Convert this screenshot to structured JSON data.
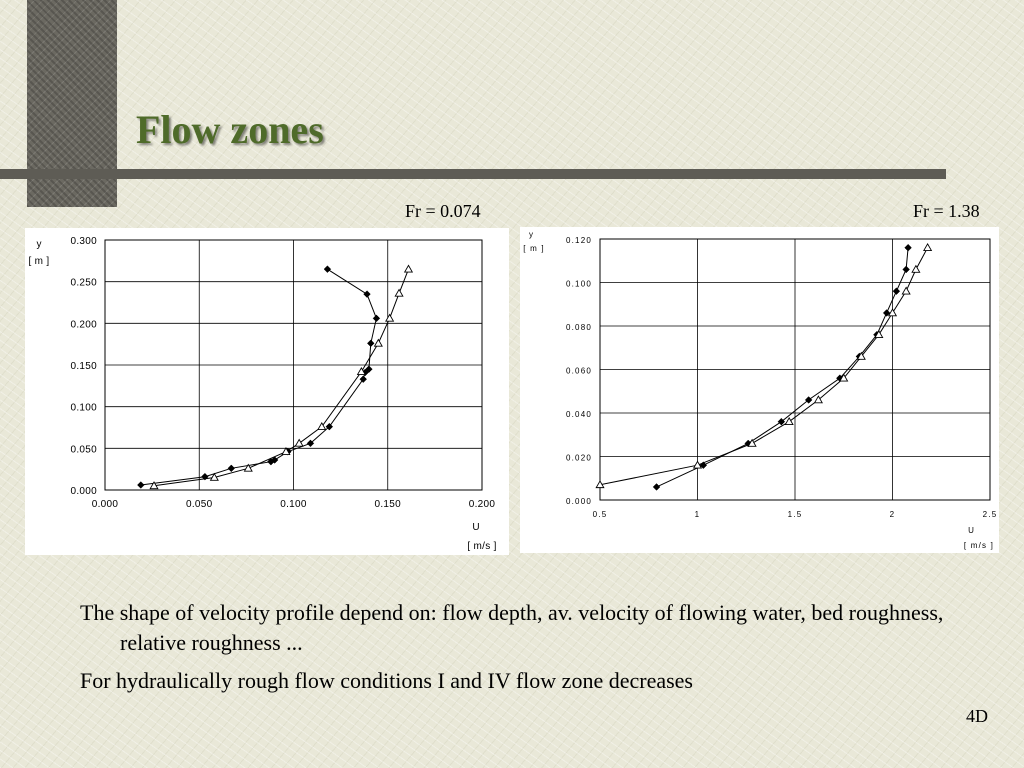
{
  "slide": {
    "title": "Flow zones",
    "bullets": [
      "The shape of velocity profile depend on: flow depth, av. velocity of flowing water, bed roughness, relative roughness ...",
      "For hydraulically rough flow conditions I and IV flow zone decreases"
    ],
    "slide_number": "4D"
  },
  "chart_data": [
    {
      "type": "line",
      "title": "Fr = 0.074",
      "xlabel": "U",
      "xunit": "[ m/s ]",
      "ylabel": "y",
      "yunit": "[ m ]",
      "xlim": [
        0.0,
        0.2
      ],
      "ylim": [
        0.0,
        0.3
      ],
      "xticks": [
        "0.000",
        "0.050",
        "0.100",
        "0.150",
        "0.200"
      ],
      "yticks": [
        "0.000",
        "0.050",
        "0.100",
        "0.150",
        "0.200",
        "0.250",
        "0.300"
      ],
      "grid": true,
      "series": [
        {
          "marker": "diamond",
          "color": "#000000",
          "x": [
            0.019,
            0.053,
            0.067,
            0.088,
            0.09,
            0.097,
            0.109,
            0.119,
            0.137,
            0.138,
            0.14,
            0.141,
            0.144,
            0.139,
            0.118
          ],
          "y": [
            0.006,
            0.016,
            0.026,
            0.034,
            0.036,
            0.046,
            0.056,
            0.076,
            0.133,
            0.141,
            0.145,
            0.176,
            0.206,
            0.235,
            0.265
          ]
        },
        {
          "marker": "triangle-open",
          "color": "#000000",
          "x": [
            0.026,
            0.058,
            0.076,
            0.096,
            0.103,
            0.115,
            0.136,
            0.145,
            0.151,
            0.156,
            0.161
          ],
          "y": [
            0.005,
            0.015,
            0.026,
            0.046,
            0.056,
            0.076,
            0.142,
            0.176,
            0.206,
            0.236,
            0.265
          ]
        }
      ]
    },
    {
      "type": "line",
      "title": "Fr = 1.38",
      "xlabel": "U",
      "xunit": "[ m/s ]",
      "ylabel": "y",
      "yunit": "[ m ]",
      "xlim": [
        0.5,
        2.5
      ],
      "ylim": [
        0.0,
        0.12
      ],
      "xticks": [
        "0.5",
        "1",
        "1.5",
        "2",
        "2.5"
      ],
      "yticks": [
        "0.000",
        "0.020",
        "0.040",
        "0.060",
        "0.080",
        "0.100",
        "0.120"
      ],
      "grid": true,
      "series": [
        {
          "marker": "diamond",
          "color": "#000000",
          "x": [
            0.79,
            1.03,
            1.26,
            1.43,
            1.57,
            1.73,
            1.83,
            1.92,
            1.97,
            2.02,
            2.07,
            2.08
          ],
          "y": [
            0.006,
            0.016,
            0.026,
            0.036,
            0.046,
            0.056,
            0.066,
            0.076,
            0.086,
            0.096,
            0.106,
            0.116
          ]
        },
        {
          "marker": "triangle-open",
          "color": "#000000",
          "x": [
            0.5,
            1.0,
            1.28,
            1.47,
            1.62,
            1.75,
            1.84,
            1.93,
            2.0,
            2.07,
            2.12,
            2.18
          ],
          "y": [
            0.007,
            0.016,
            0.026,
            0.036,
            0.046,
            0.056,
            0.066,
            0.076,
            0.086,
            0.096,
            0.106,
            0.116
          ]
        }
      ]
    }
  ]
}
